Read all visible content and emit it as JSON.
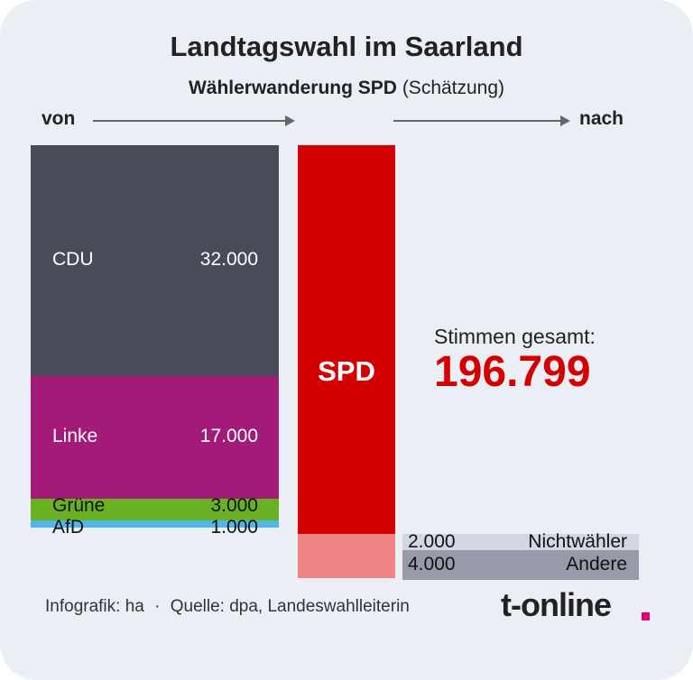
{
  "title": "Landtagswahl im Saarland",
  "subtitle_bold": "Wählerwanderung SPD",
  "subtitle_rest": "(Schätzung)",
  "from_label": "von",
  "to_label": "nach",
  "target_party": "SPD",
  "total_label": "Stimmen gesamt:",
  "total_value": "196.799",
  "footer_text": "Infografik: ha",
  "footer_sep": "·",
  "footer_source": "Quelle: dpa, Landeswahlleiterin",
  "logo_text": "t-online",
  "colors": {
    "background": "#eceef6",
    "CDU": "#484c58",
    "Linke": "#a31b79",
    "Grüne": "#6ab023",
    "AfD": "#4fb7e8",
    "SPD": "#d40000",
    "SPD_loss": "#ef8582",
    "Nichtwähler": "#d3d6e3",
    "Andere": "#989aaa",
    "accent": "#e2007a"
  },
  "chart_data": {
    "type": "bar",
    "title": "Landtagswahl im Saarland",
    "subtitle": "Wählerwanderung SPD (Schätzung)",
    "gains": [
      {
        "name": "CDU",
        "value": 32000,
        "value_label": "32.000"
      },
      {
        "name": "Linke",
        "value": 17000,
        "value_label": "17.000"
      },
      {
        "name": "Grüne",
        "value": 3000,
        "value_label": "3.000"
      },
      {
        "name": "AfD",
        "value": 1000,
        "value_label": "1.000"
      }
    ],
    "losses": [
      {
        "name": "Nichtwähler",
        "value": 2000,
        "value_label": "2.000"
      },
      {
        "name": "Andere",
        "value": 4000,
        "value_label": "4.000"
      }
    ],
    "total_label": "Stimmen gesamt:",
    "total_value": 196799
  }
}
